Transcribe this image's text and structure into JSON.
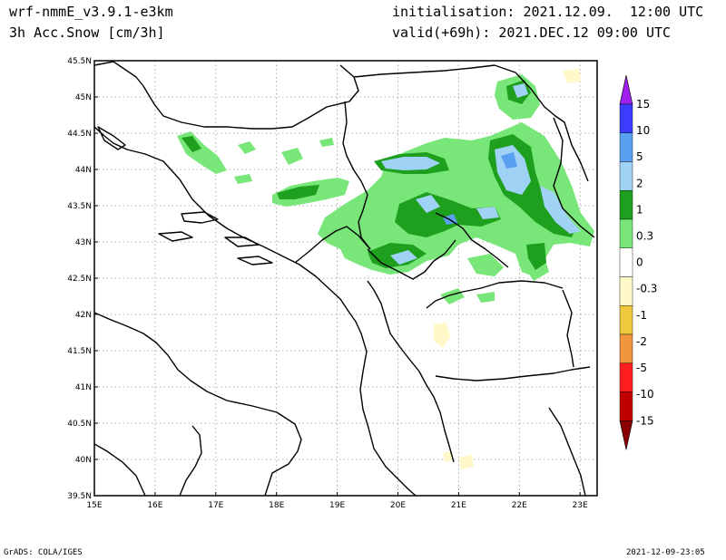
{
  "header": {
    "model": "wrf-nmmE_v3.9.1-e3km",
    "field": "3h Acc.Snow [cm/3h]",
    "init": "initialisation: 2021.12.09.  12:00 UTC",
    "valid": "valid(+69h): 2021.DEC.12 09:00 UTC"
  },
  "footer": {
    "credit": "GrADS: COLA/IGES",
    "timestamp": "2021-12-09-23:05"
  },
  "axes": {
    "lon_labels": [
      "15E",
      "16E",
      "17E",
      "18E",
      "19E",
      "20E",
      "21E",
      "22E",
      "23E"
    ],
    "lat_labels": [
      "39.5N",
      "40N",
      "40.5N",
      "41N",
      "41.5N",
      "42N",
      "42.5N",
      "43N",
      "43.5N",
      "44N",
      "44.5N",
      "45N",
      "45.5N"
    ]
  },
  "colorbar": {
    "levels": [
      "15",
      "10",
      "5",
      "2",
      "1",
      "0.3",
      "0",
      "-0.3",
      "-1",
      "-2",
      "-5",
      "-10",
      "-15"
    ],
    "colors": [
      "#a020f0",
      "#3c3cff",
      "#5aa0f0",
      "#a0d2f5",
      "#1ea01e",
      "#78e678",
      "#ffffff",
      "#fff8c8",
      "#f0c83c",
      "#f0963c",
      "#ff1e1e",
      "#c00000",
      "#8b0000"
    ]
  }
}
